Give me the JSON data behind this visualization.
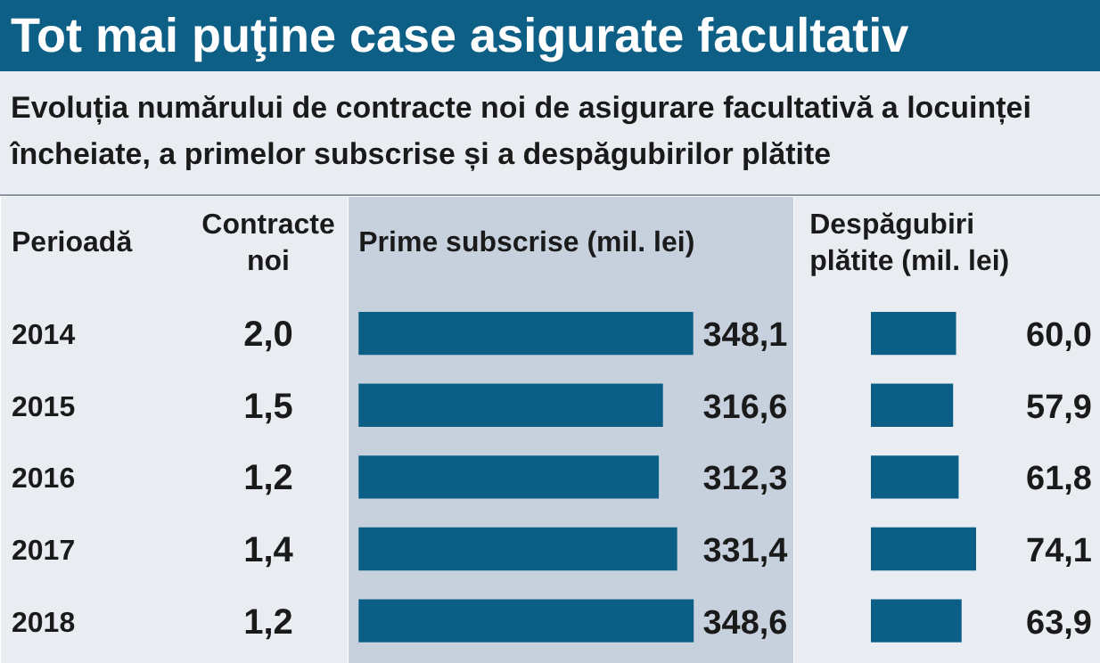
{
  "chart_data": [
    {
      "type": "other",
      "title": "Tot mai puţine case asigurate facultativ",
      "subtitle": "Evoluția numărului de contracte noi de asigurare facultativă a locuinței încheiate, a primelor subscrise și a despăgubirilor plătite",
      "xlabel": "Contracte noi",
      "values": [
        2.0,
        1.5,
        1.2,
        1.4,
        1.2
      ],
      "value_labels": [
        "2,0",
        "1,5",
        "1,2",
        "1,4",
        "1,2"
      ]
    },
    {
      "type": "bar",
      "orientation": "horizontal",
      "ylabel": "Perioadă",
      "xlabel": "Prime subscrise (mil. lei)",
      "categories": [
        "2014",
        "2015",
        "2016",
        "2017",
        "2018"
      ],
      "values": [
        348.1,
        316.6,
        312.3,
        331.4,
        348.6
      ],
      "color": "#0b5f86",
      "value_labels": [
        "348,1",
        "316,6",
        "312,3",
        "331,4",
        "348,6"
      ]
    },
    {
      "type": "bar",
      "orientation": "horizontal",
      "xlabel": "Despăgubiri plătite (mil. lei)",
      "categories": [
        null,
        null,
        null,
        null,
        null
      ],
      "values": [
        60.0,
        57.9,
        61.8,
        74.1,
        63.9
      ],
      "color": "#0b5f86",
      "value_labels": [
        "60,0",
        "57,9",
        "61,8",
        "74,1",
        "63,9"
      ]
    }
  ]
}
